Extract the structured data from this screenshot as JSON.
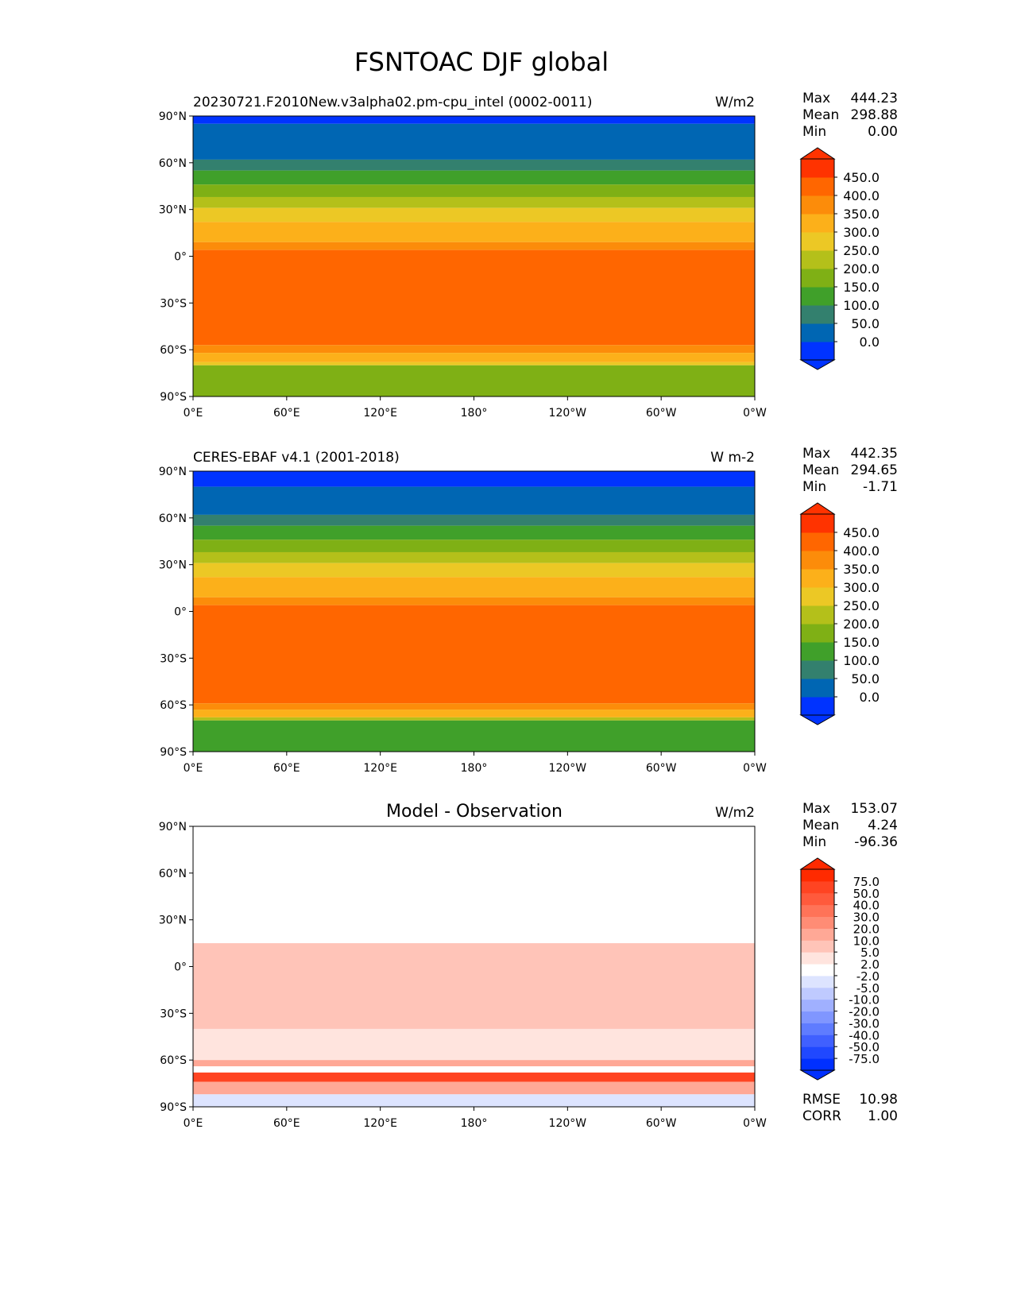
{
  "title": "FSNTOAC DJF global",
  "xticks": [
    "0°E",
    "60°E",
    "120°E",
    "180°",
    "120°W",
    "60°W",
    "0°W"
  ],
  "yticks": [
    "90°N",
    "60°N",
    "30°N",
    "0°",
    "30°S",
    "60°S",
    "90°S"
  ],
  "chart_data": [
    {
      "type": "heatmap",
      "title": "20230721.F2010New.v3alpha02.pm-cpu_intel (0002-0011)",
      "units": "W/m2",
      "stats": {
        "max_label": "Max",
        "max": "444.23",
        "mean_label": "Mean",
        "mean": "298.88",
        "min_label": "Min",
        "min": "0.00"
      },
      "levels": [
        0,
        50,
        100,
        150,
        200,
        250,
        300,
        350,
        400,
        450
      ],
      "level_labels": [
        "0.0",
        "50.0",
        "100.0",
        "150.0",
        "200.0",
        "250.0",
        "300.0",
        "350.0",
        "400.0",
        "450.0"
      ],
      "colors": [
        "#0033ff",
        "#0066b3",
        "#33806e",
        "#40a02a",
        "#7fb015",
        "#b4c01a",
        "#ecc825",
        "#fcb01a",
        "#fc8c0a",
        "#ff6600",
        "#ff3300"
      ],
      "zonal_bands": [
        [
          90,
          85,
          -1
        ],
        [
          85,
          62,
          25
        ],
        [
          62,
          55,
          75
        ],
        [
          55,
          46,
          125
        ],
        [
          46,
          38,
          175
        ],
        [
          38,
          31,
          225
        ],
        [
          31,
          22,
          275
        ],
        [
          22,
          9,
          325
        ],
        [
          9,
          4,
          375
        ],
        [
          4,
          -57,
          425
        ],
        [
          -57,
          -62,
          375
        ],
        [
          -62,
          -68,
          325
        ],
        [
          -68,
          -70,
          275
        ],
        [
          -70,
          -90,
          175
        ]
      ]
    },
    {
      "type": "heatmap",
      "title": "CERES-EBAF v4.1 (2001-2018)",
      "units": "W m-2",
      "stats": {
        "max_label": "Max",
        "max": "442.35",
        "mean_label": "Mean",
        "mean": "294.65",
        "min_label": "Min",
        "min": "-1.71"
      },
      "levels": [
        0,
        50,
        100,
        150,
        200,
        250,
        300,
        350,
        400,
        450
      ],
      "level_labels": [
        "0.0",
        "50.0",
        "100.0",
        "150.0",
        "200.0",
        "250.0",
        "300.0",
        "350.0",
        "400.0",
        "450.0"
      ],
      "colors": [
        "#0033ff",
        "#0066b3",
        "#33806e",
        "#40a02a",
        "#7fb015",
        "#b4c01a",
        "#ecc825",
        "#fcb01a",
        "#fc8c0a",
        "#ff6600",
        "#ff3300"
      ],
      "zonal_bands": [
        [
          90,
          80,
          -1
        ],
        [
          80,
          62,
          25
        ],
        [
          62,
          55,
          75
        ],
        [
          55,
          46,
          125
        ],
        [
          46,
          38,
          175
        ],
        [
          38,
          31,
          225
        ],
        [
          31,
          22,
          275
        ],
        [
          22,
          9,
          325
        ],
        [
          9,
          4,
          375
        ],
        [
          4,
          -59,
          425
        ],
        [
          -59,
          -63,
          375
        ],
        [
          -63,
          -68,
          325
        ],
        [
          -68,
          -70,
          225
        ],
        [
          -70,
          -90,
          125
        ]
      ]
    },
    {
      "type": "heatmap",
      "title": "Model - Observation",
      "units": "W/m2",
      "stats": {
        "max_label": "Max",
        "max": "153.07",
        "mean_label": "Mean",
        "mean": "4.24",
        "min_label": "Min",
        "min": "-96.36"
      },
      "extra": {
        "rmse_label": "RMSE",
        "rmse": "10.98",
        "corr_label": "CORR",
        "corr": "1.00"
      },
      "levels": [
        -75,
        -50,
        -40,
        -30,
        -20,
        -10,
        -5,
        -2,
        2,
        5,
        10,
        20,
        30,
        40,
        50,
        75
      ],
      "level_labels": [
        "-75.0",
        "-50.0",
        "-40.0",
        "-30.0",
        "-20.0",
        "-10.0",
        "-5.0",
        "-2.0",
        "2.0",
        "5.0",
        "10.0",
        "20.0",
        "30.0",
        "40.0",
        "50.0",
        "75.0"
      ],
      "colors": [
        "#0030ff",
        "#2048ff",
        "#4060ff",
        "#5f7cff",
        "#8096ff",
        "#a0b0ff",
        "#bfcaff",
        "#dde4ff",
        "#ffffff",
        "#ffe4de",
        "#ffc4b8",
        "#ffa896",
        "#ff8c75",
        "#ff7358",
        "#ff5a3c",
        "#ff4422",
        "#ff2a00"
      ],
      "zonal_bands": [
        [
          90,
          40,
          0
        ],
        [
          40,
          15,
          1
        ],
        [
          15,
          -40,
          7
        ],
        [
          -40,
          -60,
          4
        ],
        [
          -60,
          -64,
          12
        ],
        [
          -64,
          -68,
          1
        ],
        [
          -68,
          -74,
          60
        ],
        [
          -74,
          -82,
          15
        ],
        [
          -82,
          -90,
          -3
        ]
      ]
    }
  ]
}
